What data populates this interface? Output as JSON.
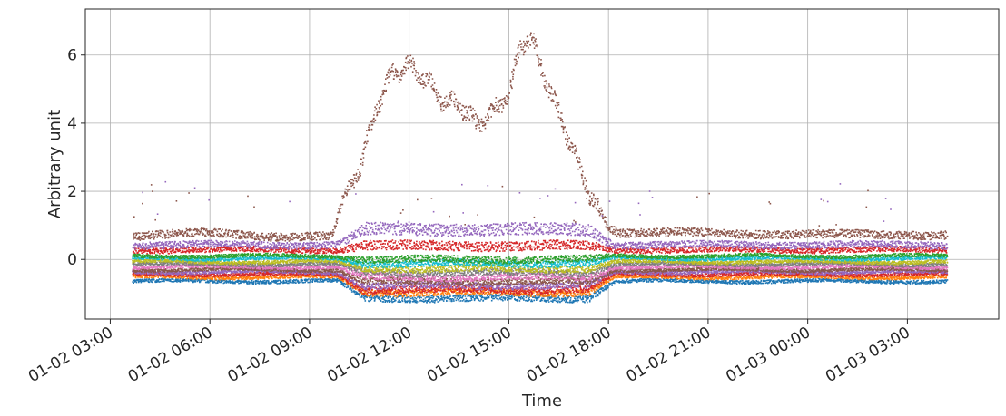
{
  "chart_data": {
    "type": "scatter",
    "title": "",
    "xlabel": "Time",
    "ylabel": "Arbitrary unit",
    "grid": true,
    "legend": "none",
    "xlim": [
      "2021-01-02T02:15",
      "2021-01-03T05:45"
    ],
    "ylim": [
      -1.75,
      7.35
    ],
    "x_ticks": [
      "01-02 03:00",
      "01-02 06:00",
      "01-02 09:00",
      "01-02 12:00",
      "01-02 15:00",
      "01-02 18:00",
      "01-02 21:00",
      "01-03 00:00",
      "01-03 03:00"
    ],
    "y_ticks": [
      0,
      2,
      4,
      6
    ],
    "data_range": [
      "2021-01-02T03:40",
      "2021-01-03T04:10"
    ],
    "series": [
      {
        "color": "#8c564b",
        "base": 0.7,
        "dip": 0.0,
        "role": "peak",
        "x": [
          "2021-01-02T03:40",
          "2021-01-02T06:00",
          "2021-01-02T08:00",
          "2021-01-02T09:40",
          "2021-01-02T10:00",
          "2021-01-02T10:30",
          "2021-01-02T11:00",
          "2021-01-02T11:30",
          "2021-01-02T12:00",
          "2021-01-02T12:30",
          "2021-01-02T13:00",
          "2021-01-02T13:30",
          "2021-01-02T14:00",
          "2021-01-02T14:30",
          "2021-01-02T15:00",
          "2021-01-02T15:20",
          "2021-01-02T15:40",
          "2021-01-02T16:00",
          "2021-01-02T16:30",
          "2021-01-02T17:00",
          "2021-01-02T17:30",
          "2021-01-02T18:00",
          "2021-01-02T18:15",
          "2021-01-02T21:00",
          "2021-01-03T00:00",
          "2021-01-03T04:10"
        ],
        "y": [
          0.7,
          0.8,
          0.7,
          0.7,
          1.8,
          2.7,
          4.5,
          5.5,
          5.7,
          5.3,
          4.7,
          4.6,
          4.0,
          4.3,
          4.9,
          6.3,
          6.5,
          5.5,
          4.3,
          3.0,
          1.8,
          1.0,
          0.8,
          0.8,
          0.75,
          0.75
        ]
      },
      {
        "color": "#9467bd",
        "base": 0.45,
        "dip": 0.0,
        "role": "bump"
      },
      {
        "color": "#d62728",
        "base": 0.3,
        "dip": 0.0,
        "role": "bump2"
      },
      {
        "color": "#2ca02c",
        "base": 0.12,
        "dip": -0.1,
        "role": "band"
      },
      {
        "color": "#17becf",
        "base": 0.05,
        "dip": -0.15,
        "role": "band"
      },
      {
        "color": "#bcbd22",
        "base": -0.05,
        "dip": -0.2,
        "role": "band"
      },
      {
        "color": "#7f7f7f",
        "base": -0.12,
        "dip": -0.25,
        "role": "band"
      },
      {
        "color": "#e377c2",
        "base": -0.2,
        "dip": -0.3,
        "role": "band"
      },
      {
        "color": "#8c564b",
        "base": -0.28,
        "dip": -0.35,
        "role": "band"
      },
      {
        "color": "#9467bd",
        "base": -0.35,
        "dip": -0.4,
        "role": "band"
      },
      {
        "color": "#d62728",
        "base": -0.42,
        "dip": -0.45,
        "role": "band"
      },
      {
        "color": "#ff7f0e",
        "base": -0.5,
        "dip": -0.45,
        "role": "band"
      },
      {
        "color": "#1f77b4",
        "base": -0.62,
        "dip": -0.5,
        "role": "band"
      }
    ]
  }
}
